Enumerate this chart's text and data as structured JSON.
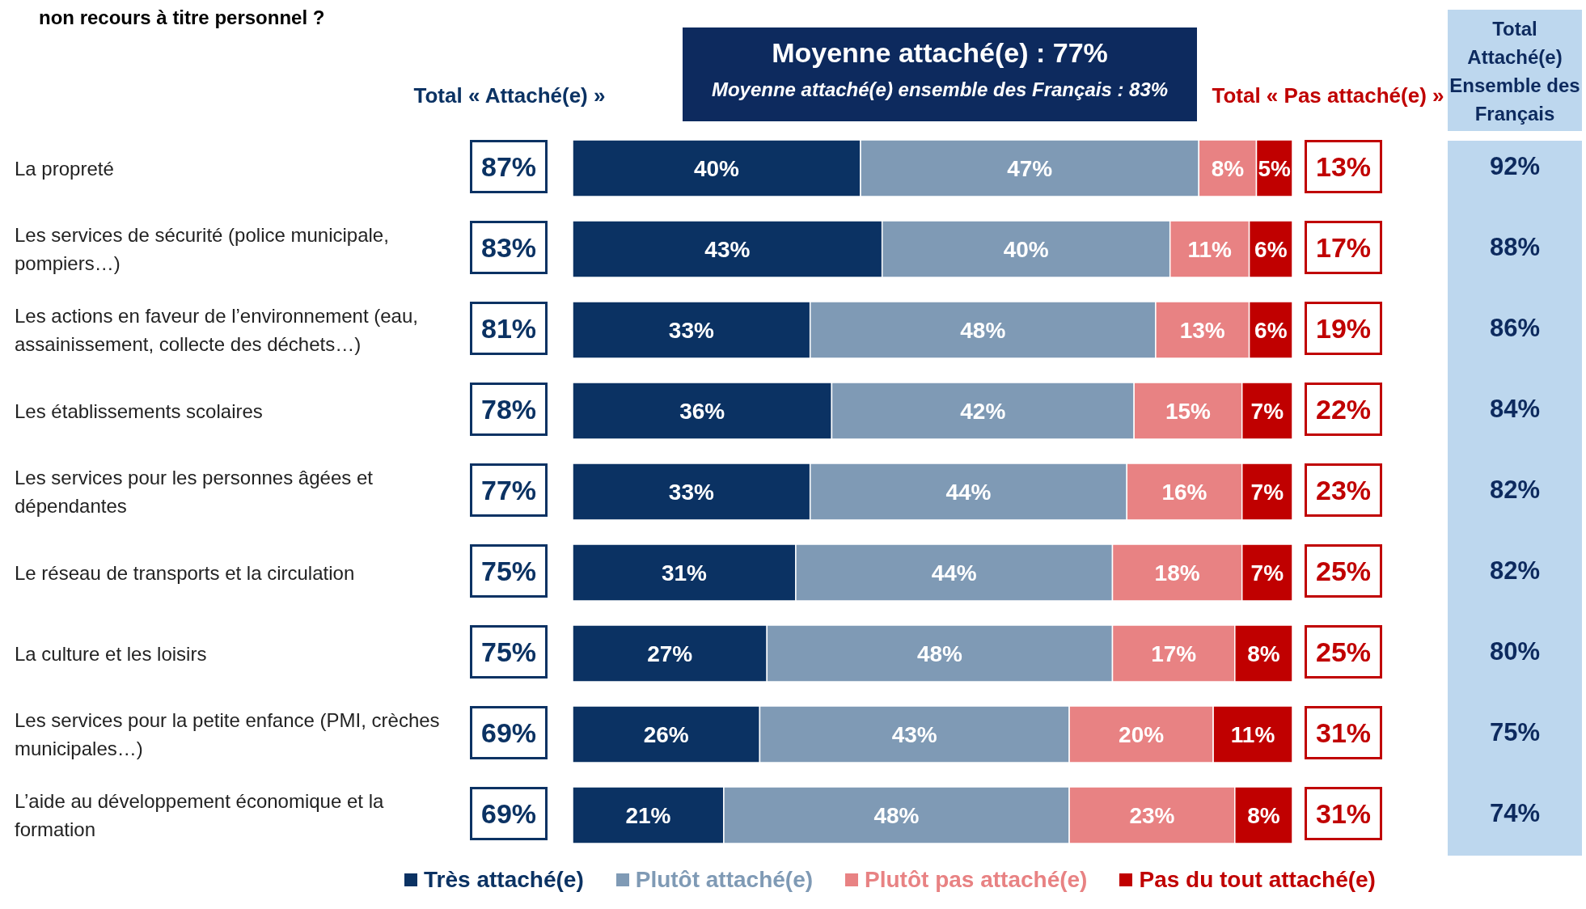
{
  "chart_data": {
    "type": "bar",
    "orientation": "horizontal",
    "stacked": true,
    "title": "non recours à titre personnel ?",
    "categories": [
      "La propreté",
      "Les services de sécurité (police municipale, pompiers…)",
      "Les actions en faveur de l’environnement (eau, assainissement, collecte des déchets…)",
      "Les établissements scolaires",
      "Les services pour les personnes âgées et dépendantes",
      "Le réseau de transports et la circulation",
      "La culture et les loisirs",
      "Les services pour la petite enfance (PMI, crèches municipales…)",
      "L’aide au développement économique et la formation"
    ],
    "series": [
      {
        "name": "Très attaché(e)",
        "color": "#0b3263",
        "values": [
          40,
          43,
          33,
          36,
          33,
          31,
          27,
          26,
          21
        ],
        "value_labels": [
          "40%",
          "43%",
          "33%",
          "36%",
          "33%",
          "31%",
          "27%",
          "26%",
          "21%"
        ]
      },
      {
        "name": "Plutôt attaché(e)",
        "color": "#7f9ab5",
        "values": [
          47,
          40,
          48,
          42,
          44,
          44,
          48,
          43,
          48
        ],
        "value_labels": [
          "47%",
          "40%",
          "48%",
          "42%",
          "44%",
          "44%",
          "48%",
          "43%",
          "48%"
        ]
      },
      {
        "name": "Plutôt pas attaché(e)",
        "color": "#e88283",
        "values": [
          8,
          11,
          13,
          15,
          16,
          18,
          17,
          20,
          23
        ],
        "value_labels": [
          "8%",
          "11%",
          "13%",
          "15%",
          "16%",
          "18%",
          "17%",
          "20%",
          "23%"
        ]
      },
      {
        "name": "Pas du tout attaché(e)",
        "color": "#c00000",
        "values": [
          5,
          6,
          6,
          7,
          7,
          7,
          8,
          11,
          8
        ],
        "value_labels": [
          "5%",
          "6%",
          "6%",
          "7%",
          "7%",
          "7%",
          "8%",
          "11%",
          "8%"
        ]
      }
    ],
    "xlim": [
      0,
      100
    ],
    "tick_labels": "y",
    "legend": "bottom",
    "annotations": [
      "Moyenne attaché(e) : 77%",
      "Moyenne attaché(e) ensemble des Français : 83%",
      "Total « Attaché(e) »",
      "Total « Pas attaché(e) »",
      "Total Attaché(e) Ensemble des Français",
      "87%",
      "83%",
      "81%",
      "78%",
      "77%",
      "75%",
      "75%",
      "69%",
      "69%",
      "13%",
      "17%",
      "19%",
      "22%",
      "23%",
      "25%",
      "25%",
      "31%",
      "31%",
      "92%",
      "88%",
      "86%",
      "84%",
      "82%",
      "82%",
      "80%",
      "75%",
      "74%"
    ]
  }
}
